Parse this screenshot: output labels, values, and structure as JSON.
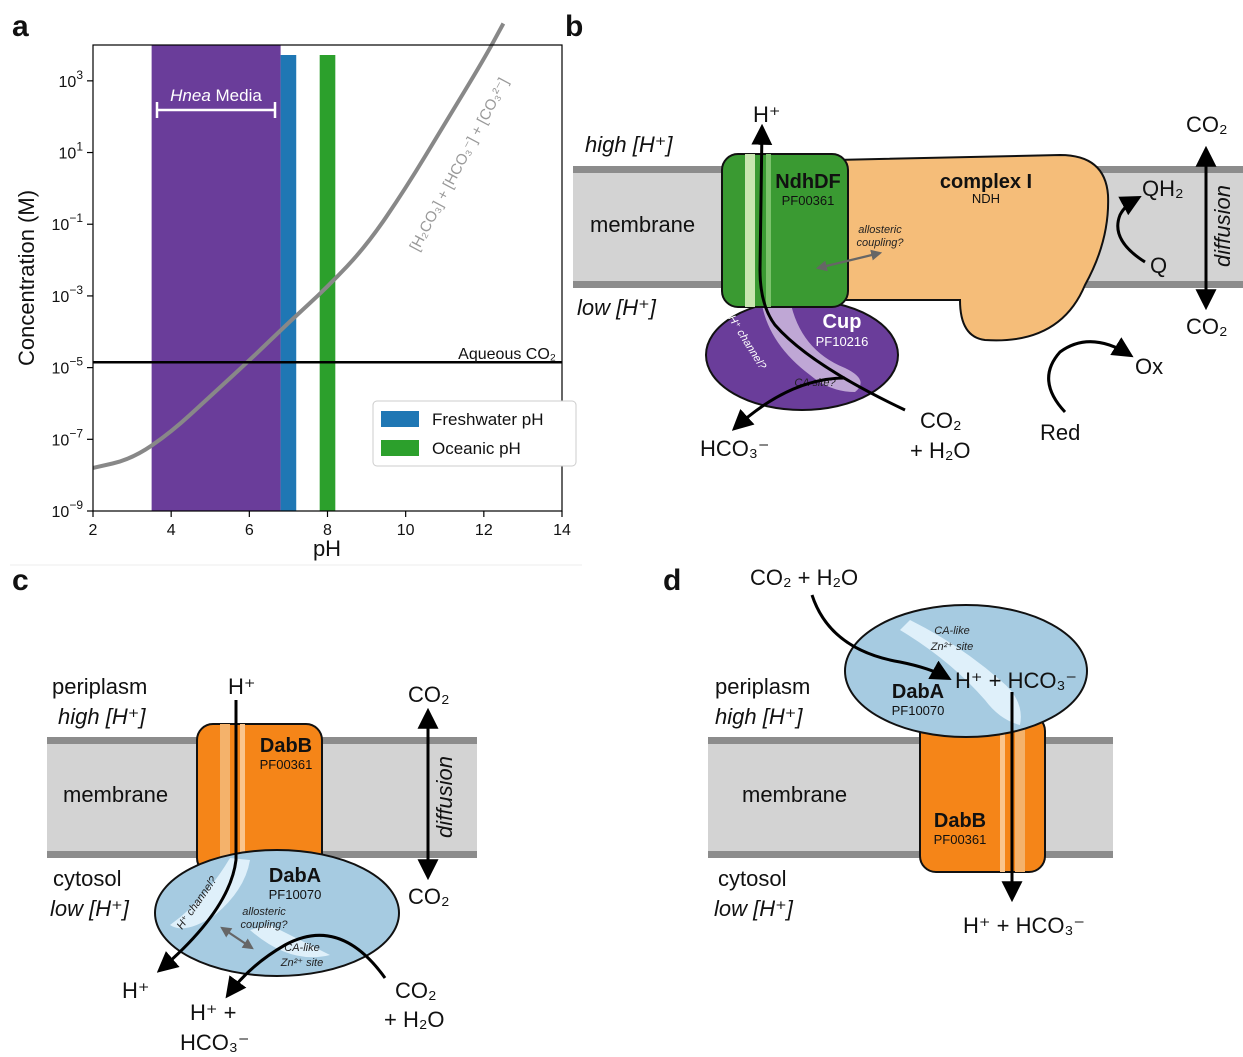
{
  "panel_labels": {
    "a": "a",
    "b": "b",
    "c": "c",
    "d": "d"
  },
  "chart_data": {
    "type": "line",
    "xlabel": "pH",
    "ylabel": "Concentration (M)",
    "xlim": [
      2,
      14
    ],
    "ylim_log10": [
      -9,
      4
    ],
    "yscale": "log",
    "xticks": [
      "2",
      "4",
      "6",
      "8",
      "10",
      "12",
      "14"
    ],
    "yticks": [
      {
        "base": "10",
        "exp": "3",
        "log10": 3
      },
      {
        "base": "10",
        "exp": "1",
        "log10": 1
      },
      {
        "base": "10",
        "exp": "−1",
        "log10": -1
      },
      {
        "base": "10",
        "exp": "−3",
        "log10": -3
      },
      {
        "base": "10",
        "exp": "−5",
        "log10": -5
      },
      {
        "base": "10",
        "exp": "−7",
        "log10": -7
      },
      {
        "base": "10",
        "exp": "−9",
        "log10": -9
      }
    ],
    "bands": [
      {
        "label": "Hnea Media",
        "from": 3.5,
        "to": 6.8,
        "color": "#6a3d9a"
      },
      {
        "label": "Freshwater pH",
        "from": 6.8,
        "to": 7.2,
        "color": "#1f77b4"
      },
      {
        "label": "Oceanic pH",
        "from": 7.8,
        "to": 8.2,
        "color": "#2ca02c"
      }
    ],
    "series": [
      {
        "name": "[H2CO3] + [HCO3] + [CO3]",
        "color": "#888888",
        "points": [
          [
            2,
            -7.8
          ],
          [
            3,
            -7.55
          ],
          [
            4,
            -6.8
          ],
          [
            5,
            -5.8
          ],
          [
            6,
            -4.8
          ],
          [
            7,
            -3.75
          ],
          [
            8,
            -2.75
          ],
          [
            9,
            -1.6
          ],
          [
            10,
            0
          ],
          [
            11,
            1.8
          ],
          [
            12,
            3.6
          ],
          [
            12.5,
            4.6
          ]
        ]
      },
      {
        "name": "Aqueous CO2",
        "color": "#000000",
        "points": [
          [
            2,
            -4.85
          ],
          [
            14,
            -4.85
          ]
        ]
      }
    ],
    "hnea_label": {
      "italic": "Hnea",
      "rest": " Media"
    },
    "curve_label": "[H₂CO₃] + [HCO₃⁻] + [CO₃²⁻]",
    "co2_label": "Aqueous CO₂",
    "legend": [
      "Freshwater pH",
      "Oceanic pH"
    ]
  },
  "panel_b": {
    "high_h": "high [H⁺]",
    "low_h": "low [H⁺]",
    "membrane": "membrane",
    "h_plus": "H⁺",
    "ndhdf": "NdhDF",
    "ndhdf_pf": "PF00361",
    "complex": "complex I",
    "ndh": "NDH",
    "allosteric": "allosteric",
    "coupling": "coupling?",
    "cup": "Cup",
    "cup_pf": "PF10216",
    "h_channel": "H⁺ channel?",
    "ca_site": "CA site?",
    "hco3": "HCO₃⁻",
    "co2_h2o_1": "CO₂",
    "co2_h2o_2": "+ H₂O",
    "qh2": "QH₂",
    "q": "Q",
    "ox": "Ox",
    "red": "Red",
    "co2_top": "CO₂",
    "co2_bot": "CO₂",
    "diffusion": "diffusion"
  },
  "panel_c": {
    "periplasm": "periplasm",
    "high_h": "high [H⁺]",
    "membrane": "membrane",
    "cytosol": "cytosol",
    "low_h": "low [H⁺]",
    "h_plus_top": "H⁺",
    "dabb": "DabB",
    "dabb_pf": "PF00361",
    "daba": "DabA",
    "daba_pf": "PF10070",
    "h_channel": "H⁺ channel?",
    "allosteric": "allosteric",
    "coupling": "coupling?",
    "ca_like": "CA-like",
    "zn_site": "Zn²⁺ site",
    "h_plus_out": "H⁺",
    "hplus_plus": "H⁺ +",
    "hco3": "HCO₃⁻",
    "co2_a": "CO₂",
    "h2o_a": "+ H₂O",
    "co2_top": "CO₂",
    "co2_bot": "CO₂",
    "diffusion": "diffusion"
  },
  "panel_d": {
    "co2_h2o": "CO₂ + H₂O",
    "ca_like": "CA-like",
    "zn_site": "Zn²⁺ site",
    "hplus_hco3": "H⁺ + HCO₃⁻",
    "daba": "DabA",
    "daba_pf": "PF10070",
    "periplasm": "periplasm",
    "high_h": "high [H⁺]",
    "membrane": "membrane",
    "dabb": "DabB",
    "dabb_pf": "PF00361",
    "cytosol": "cytosol",
    "low_h": "low [H⁺]",
    "bottom": "H⁺ + HCO₃⁻"
  }
}
